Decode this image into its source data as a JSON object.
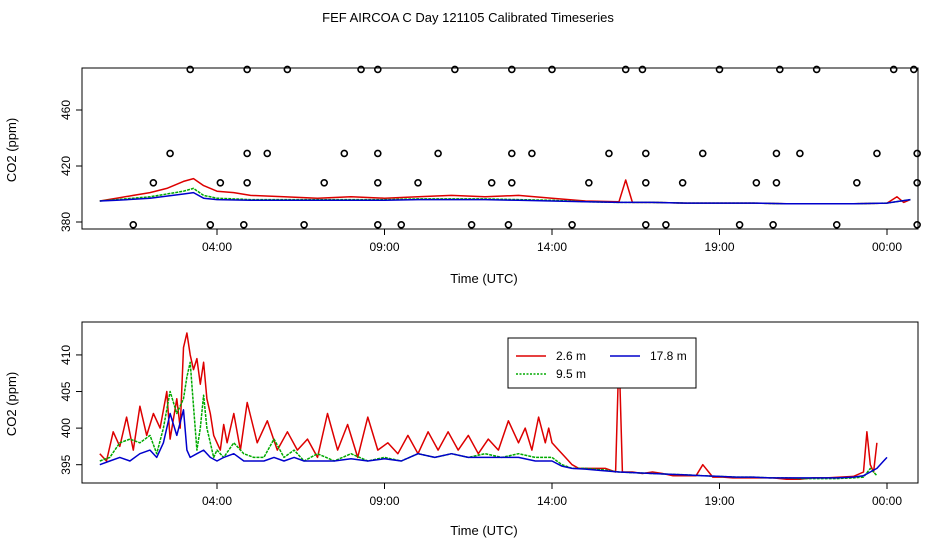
{
  "figure": {
    "title": "FEF AIRCOA C  Day 121105  Calibrated Timeseries"
  },
  "colors": {
    "red": "#dd0000",
    "green": "#00aa00",
    "blue": "#0000cc",
    "axis": "#000000"
  },
  "chart_data": [
    {
      "type": "scatter+line",
      "name": "full-range",
      "xlabel": "Time (UTC)",
      "ylabel": "CO2 (ppm)",
      "xlim": [
        0,
        24
      ],
      "ylim": [
        375,
        490
      ],
      "x_ticks": [
        {
          "v": 4,
          "label": "04:00"
        },
        {
          "v": 9,
          "label": "09:00"
        },
        {
          "v": 14,
          "label": "14:00"
        },
        {
          "v": 19,
          "label": "19:00"
        },
        {
          "v": 24,
          "label": "00:00"
        }
      ],
      "y_ticks": [
        {
          "v": 380,
          "label": "380"
        },
        {
          "v": 420,
          "label": "420"
        },
        {
          "v": 460,
          "label": "460"
        }
      ],
      "calibration_points": [
        {
          "x": 1.5,
          "y": 378
        },
        {
          "x": 2.1,
          "y": 408
        },
        {
          "x": 2.6,
          "y": 429
        },
        {
          "x": 3.2,
          "y": 489
        },
        {
          "x": 3.8,
          "y": 378
        },
        {
          "x": 4.1,
          "y": 408
        },
        {
          "x": 4.8,
          "y": 378
        },
        {
          "x": 4.9,
          "y": 408
        },
        {
          "x": 4.9,
          "y": 429
        },
        {
          "x": 4.9,
          "y": 489
        },
        {
          "x": 5.5,
          "y": 429
        },
        {
          "x": 6.1,
          "y": 489
        },
        {
          "x": 6.6,
          "y": 378
        },
        {
          "x": 7.2,
          "y": 408
        },
        {
          "x": 7.8,
          "y": 429
        },
        {
          "x": 8.3,
          "y": 489
        },
        {
          "x": 8.8,
          "y": 378
        },
        {
          "x": 8.8,
          "y": 408
        },
        {
          "x": 8.8,
          "y": 429
        },
        {
          "x": 8.8,
          "y": 489
        },
        {
          "x": 9.5,
          "y": 378
        },
        {
          "x": 10.0,
          "y": 408
        },
        {
          "x": 10.6,
          "y": 429
        },
        {
          "x": 11.1,
          "y": 489
        },
        {
          "x": 11.6,
          "y": 378
        },
        {
          "x": 12.2,
          "y": 408
        },
        {
          "x": 12.7,
          "y": 378
        },
        {
          "x": 12.8,
          "y": 408
        },
        {
          "x": 12.8,
          "y": 429
        },
        {
          "x": 12.8,
          "y": 489
        },
        {
          "x": 13.4,
          "y": 429
        },
        {
          "x": 14.0,
          "y": 489
        },
        {
          "x": 14.6,
          "y": 378
        },
        {
          "x": 15.1,
          "y": 408
        },
        {
          "x": 15.7,
          "y": 429
        },
        {
          "x": 16.2,
          "y": 489
        },
        {
          "x": 16.7,
          "y": 489
        },
        {
          "x": 16.8,
          "y": 378
        },
        {
          "x": 16.8,
          "y": 408
        },
        {
          "x": 16.8,
          "y": 429
        },
        {
          "x": 17.4,
          "y": 378
        },
        {
          "x": 17.9,
          "y": 408
        },
        {
          "x": 18.5,
          "y": 429
        },
        {
          "x": 19.0,
          "y": 489
        },
        {
          "x": 19.6,
          "y": 378
        },
        {
          "x": 20.1,
          "y": 408
        },
        {
          "x": 20.6,
          "y": 378
        },
        {
          "x": 20.7,
          "y": 408
        },
        {
          "x": 20.7,
          "y": 429
        },
        {
          "x": 20.8,
          "y": 489
        },
        {
          "x": 21.4,
          "y": 429
        },
        {
          "x": 21.9,
          "y": 489
        },
        {
          "x": 22.5,
          "y": 378
        },
        {
          "x": 23.1,
          "y": 408
        },
        {
          "x": 23.7,
          "y": 429
        },
        {
          "x": 24.2,
          "y": 489
        },
        {
          "x": 24.8,
          "y": 489
        },
        {
          "x": 24.9,
          "y": 378
        },
        {
          "x": 24.9,
          "y": 408
        },
        {
          "x": 24.9,
          "y": 429
        }
      ],
      "series": [
        {
          "name": "2.6 m",
          "color": "#dd0000",
          "x": [
            0.5,
            1.0,
            1.5,
            2.0,
            2.5,
            3.0,
            3.3,
            3.6,
            4.0,
            4.5,
            5.0,
            6.0,
            7.0,
            8.0,
            9.0,
            10.0,
            11.0,
            12.0,
            13.0,
            14.0,
            15.0,
            16.0,
            16.2,
            16.4,
            17.0,
            18.0,
            19.0,
            20.0,
            21.0,
            22.0,
            23.0,
            24.0,
            24.3,
            24.5,
            24.7
          ],
          "y": [
            395,
            397,
            399,
            401,
            404,
            409,
            411,
            406,
            402,
            401,
            399,
            398,
            397,
            398,
            397,
            398,
            399,
            398,
            399,
            397,
            395,
            394.5,
            410,
            394,
            394,
            393.5,
            393.5,
            393.5,
            393,
            393,
            393,
            393.5,
            398,
            394,
            396
          ]
        },
        {
          "name": "9.5 m",
          "color": "#00aa00",
          "x": [
            0.5,
            1.0,
            2.0,
            3.0,
            3.3,
            3.6,
            4.0,
            5.0,
            6.0,
            7.0,
            8.0,
            9.0,
            10.0,
            11.0,
            12.0,
            13.0,
            14.0,
            15.0,
            16.0,
            17.0,
            18.0,
            19.0,
            20.0,
            21.0,
            22.0,
            23.0,
            24.0,
            24.7
          ],
          "y": [
            395,
            396,
            398,
            402,
            404,
            399,
            397,
            396,
            396,
            396,
            396,
            396,
            396.5,
            396.5,
            396.5,
            396,
            395.5,
            394.5,
            394,
            394,
            393.5,
            393.5,
            393.5,
            393,
            393,
            393,
            393.5,
            396
          ]
        },
        {
          "name": "17.8 m",
          "color": "#0000cc",
          "x": [
            0.5,
            1.0,
            2.0,
            3.0,
            3.3,
            3.6,
            4.0,
            5.0,
            6.0,
            7.0,
            8.0,
            9.0,
            10.0,
            11.0,
            12.0,
            13.0,
            14.0,
            15.0,
            16.0,
            17.0,
            18.0,
            19.0,
            20.0,
            21.0,
            22.0,
            23.0,
            24.0,
            24.7
          ],
          "y": [
            395,
            395.5,
            397,
            400,
            401,
            397,
            396,
            395.5,
            395.5,
            395.5,
            395.5,
            395.5,
            396,
            396,
            396,
            395.5,
            395,
            394.5,
            394,
            394,
            393.5,
            393.5,
            393.5,
            393,
            393,
            393,
            393.5,
            396
          ]
        }
      ]
    },
    {
      "type": "line",
      "name": "ambient-zoom",
      "xlabel": "Time (UTC)",
      "ylabel": "CO2 (ppm)",
      "xlim": [
        0,
        24
      ],
      "ylim": [
        392.5,
        414.5
      ],
      "x_ticks": [
        {
          "v": 4,
          "label": "04:00"
        },
        {
          "v": 9,
          "label": "09:00"
        },
        {
          "v": 14,
          "label": "14:00"
        },
        {
          "v": 19,
          "label": "19:00"
        },
        {
          "v": 24,
          "label": "00:00"
        }
      ],
      "y_ticks": [
        {
          "v": 395,
          "label": "395"
        },
        {
          "v": 400,
          "label": "400"
        },
        {
          "v": 405,
          "label": "405"
        },
        {
          "v": 410,
          "label": "410"
        }
      ],
      "legend": {
        "position": "top-right",
        "entries": [
          "2.6 m",
          "9.5 m",
          "17.8 m"
        ]
      },
      "series": [
        {
          "name": "2.6 m",
          "color": "#dd0000",
          "x": [
            0.5,
            0.7,
            0.9,
            1.1,
            1.3,
            1.5,
            1.7,
            1.9,
            2.1,
            2.3,
            2.5,
            2.6,
            2.8,
            2.9,
            3.0,
            3.1,
            3.2,
            3.3,
            3.4,
            3.5,
            3.6,
            3.7,
            3.8,
            3.9,
            4.0,
            4.1,
            4.2,
            4.3,
            4.5,
            4.7,
            4.9,
            5.2,
            5.5,
            5.8,
            6.1,
            6.4,
            6.7,
            7.0,
            7.3,
            7.6,
            7.9,
            8.2,
            8.5,
            8.8,
            9.1,
            9.4,
            9.7,
            10.0,
            10.3,
            10.6,
            10.9,
            11.2,
            11.5,
            11.8,
            12.1,
            12.4,
            12.7,
            13.0,
            13.2,
            13.4,
            13.6,
            13.8,
            13.9,
            14.0,
            14.2,
            14.4,
            14.6,
            14.8,
            15.0,
            15.3,
            15.6,
            15.9,
            16.0,
            16.1,
            16.2,
            16.4,
            16.7,
            17.0,
            17.3,
            17.6,
            18.0,
            18.3,
            18.5,
            18.8,
            19.1,
            19.4,
            19.7,
            20.0,
            20.3,
            20.6,
            21.0,
            21.4,
            21.8,
            22.2,
            22.6,
            23.0,
            23.3,
            23.4,
            23.5,
            23.6,
            23.7
          ],
          "y": [
            396.5,
            395.5,
            399.5,
            397.5,
            401.5,
            397,
            403,
            399,
            402,
            400,
            405,
            398.5,
            404,
            400,
            411,
            413,
            410,
            408,
            409.5,
            406,
            409,
            404,
            402,
            399,
            398,
            397,
            400.5,
            398,
            402,
            397,
            403.5,
            398,
            401,
            397,
            399.5,
            397,
            398.5,
            396,
            402,
            397,
            400.5,
            396,
            401.5,
            397,
            398,
            396.5,
            399,
            396.5,
            399.5,
            397,
            399.5,
            397,
            399,
            396.5,
            398.5,
            397,
            401,
            398,
            400,
            397,
            401.5,
            398,
            400,
            398,
            397,
            396,
            395,
            394.5,
            394.5,
            394.5,
            394.5,
            394,
            410.5,
            394,
            394,
            394,
            393.8,
            394,
            393.8,
            393.5,
            393.5,
            393.5,
            395,
            393.3,
            393.3,
            393.2,
            393.2,
            393.2,
            393.2,
            393.2,
            393,
            393,
            393.2,
            393.2,
            393.3,
            393.4,
            394,
            399.5,
            395,
            394,
            398
          ]
        },
        {
          "name": "9.5 m",
          "color": "#00aa00",
          "x": [
            0.5,
            0.8,
            1.1,
            1.4,
            1.7,
            2.0,
            2.2,
            2.4,
            2.6,
            2.8,
            3.0,
            3.1,
            3.2,
            3.3,
            3.4,
            3.5,
            3.6,
            3.7,
            3.8,
            3.9,
            4.0,
            4.2,
            4.5,
            4.8,
            5.1,
            5.4,
            5.7,
            6.0,
            6.3,
            6.6,
            7.0,
            7.5,
            8.0,
            8.5,
            9.0,
            9.5,
            10.0,
            10.5,
            11.0,
            11.5,
            12.0,
            12.5,
            13.0,
            13.5,
            14.0,
            14.3,
            14.6,
            15.0,
            15.5,
            16.0,
            16.5,
            17.0,
            17.5,
            18.0,
            18.5,
            19.0,
            19.5,
            20.0,
            20.5,
            21.0,
            21.5,
            22.0,
            22.5,
            23.0,
            23.3,
            23.5,
            23.7
          ],
          "y": [
            395.5,
            396,
            398,
            398.5,
            398,
            399,
            396.5,
            400,
            405,
            402,
            404,
            407,
            409,
            403,
            397,
            400,
            404.5,
            400,
            398,
            396,
            397,
            396,
            398,
            396.5,
            396,
            396,
            398.5,
            396,
            397,
            395.5,
            396.5,
            395.5,
            396.5,
            395.5,
            396,
            395.5,
            396.5,
            396,
            396.5,
            396,
            396.5,
            396,
            396.5,
            396,
            396,
            395,
            394.5,
            394.5,
            394.3,
            394,
            393.9,
            393.8,
            393.7,
            393.6,
            393.5,
            393.4,
            393.3,
            393.3,
            393.2,
            393.2,
            393.1,
            393.1,
            393.1,
            393.2,
            393.3,
            394.5,
            393.5
          ]
        },
        {
          "name": "17.8 m",
          "color": "#0000cc",
          "x": [
            0.5,
            0.8,
            1.1,
            1.4,
            1.7,
            2.0,
            2.2,
            2.4,
            2.6,
            2.8,
            3.0,
            3.1,
            3.2,
            3.4,
            3.6,
            3.8,
            4.0,
            4.2,
            4.5,
            4.8,
            5.1,
            5.4,
            5.7,
            6.0,
            6.3,
            6.6,
            7.0,
            7.5,
            8.0,
            8.5,
            9.0,
            9.5,
            10.0,
            10.5,
            11.0,
            11.5,
            12.0,
            12.5,
            13.0,
            13.5,
            14.0,
            14.3,
            14.6,
            15.0,
            15.5,
            16.0,
            16.5,
            17.0,
            17.5,
            18.0,
            18.5,
            19.0,
            19.5,
            20.0,
            20.5,
            21.0,
            21.5,
            22.0,
            22.5,
            23.0,
            23.3,
            23.5,
            23.7,
            23.9,
            24.0
          ],
          "y": [
            395,
            395.5,
            396,
            395.5,
            396.5,
            397,
            396,
            398,
            402,
            399,
            402.5,
            397,
            396,
            396.5,
            397,
            396,
            395.5,
            396,
            396.5,
            395.5,
            395.5,
            395.5,
            396,
            395.5,
            396,
            395.5,
            395.5,
            395.5,
            395.8,
            395.5,
            395.8,
            395.5,
            396.5,
            396,
            396.5,
            396,
            396,
            396,
            396,
            395.5,
            395.5,
            394.8,
            394.5,
            394.4,
            394.2,
            394,
            393.9,
            393.8,
            393.7,
            393.6,
            393.5,
            393.4,
            393.3,
            393.3,
            393.2,
            393.2,
            393.2,
            393.2,
            393.2,
            393.3,
            393.5,
            394,
            394.5,
            395.5,
            396
          ]
        }
      ]
    }
  ]
}
